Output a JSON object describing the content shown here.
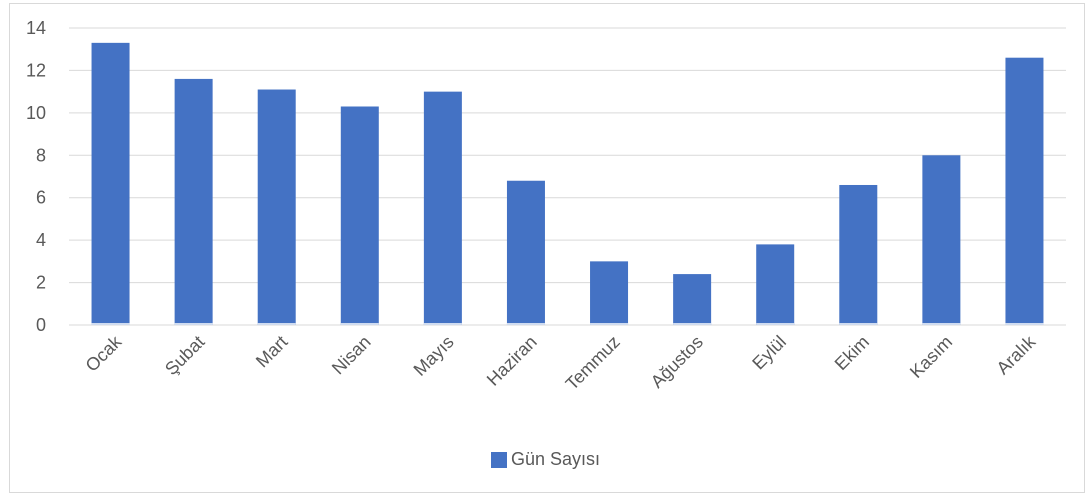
{
  "chart_data": {
    "type": "bar",
    "categories": [
      "Ocak",
      "Şubat",
      "Mart",
      "Nisan",
      "Mayıs",
      "Haziran",
      "Temmuz",
      "Ağustos",
      "Eylül",
      "Ekim",
      "Kasım",
      "Aralık"
    ],
    "series": [
      {
        "name": "Gün Sayısı",
        "values": [
          13.3,
          11.6,
          11.1,
          10.3,
          11.0,
          6.8,
          3.0,
          2.4,
          3.8,
          6.6,
          8.0,
          12.6
        ],
        "color": "#4472c4"
      }
    ],
    "ylim": [
      0,
      14
    ],
    "yticks": [
      0,
      2,
      4,
      6,
      8,
      10,
      12,
      14
    ],
    "grid": true,
    "legend_position": "bottom"
  }
}
